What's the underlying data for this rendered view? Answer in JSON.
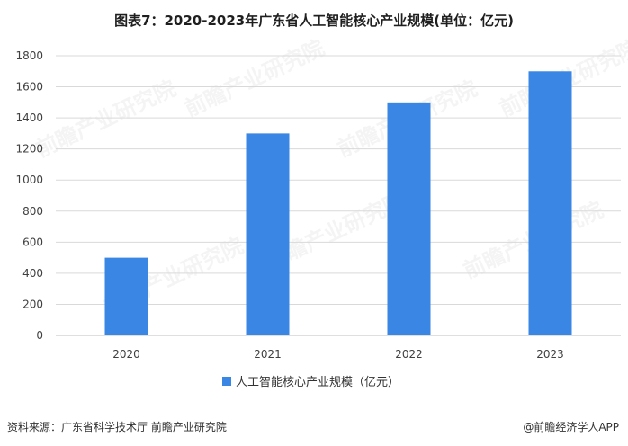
{
  "chart_data": {
    "type": "bar",
    "title": "图表7：2020-2023年广东省人工智能核心产业规模(单位：亿元)",
    "categories": [
      "2020",
      "2021",
      "2022",
      "2023"
    ],
    "series": [
      {
        "name": "人工智能核心产业规模（亿元）",
        "values": [
          500,
          1300,
          1500,
          1700
        ],
        "color": "#3a86e4"
      }
    ],
    "xlabel": "",
    "ylabel": "",
    "ylim": [
      0,
      1800
    ],
    "yticks": [
      0,
      200,
      400,
      600,
      800,
      1000,
      1200,
      1400,
      1600,
      1800
    ],
    "grid": true,
    "legend_position": "bottom"
  },
  "watermark": "前瞻产业研究院",
  "footer": {
    "source": "资料来源：广东省科学技术厅 前瞻产业研究院",
    "credit": "@前瞻经济学人APP"
  }
}
